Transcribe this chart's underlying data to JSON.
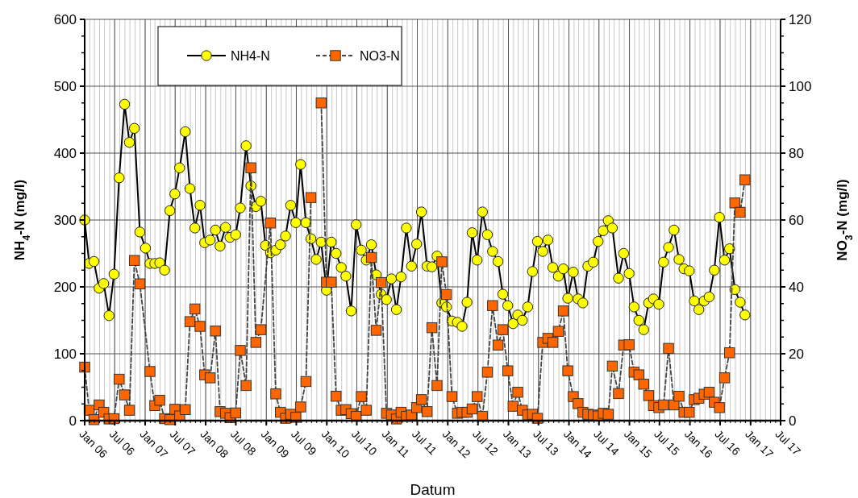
{
  "chart_data": {
    "type": "line",
    "xlabel": "Datum",
    "ylabel": "NH$_{4}$-N (mg/l)",
    "y2label": "NO$_{3}$-N (mg/l)",
    "xlim": [
      "2006-01-01",
      "2017-07-01"
    ],
    "xticks": [
      {
        "value": "2006-01-01",
        "label": "Jan 06"
      },
      {
        "value": "2006-07-01",
        "label": "Jul 06"
      },
      {
        "value": "2007-01-01",
        "label": "Jan 07"
      },
      {
        "value": "2007-07-01",
        "label": "Jul 07"
      },
      {
        "value": "2008-01-01",
        "label": "Jan 08"
      },
      {
        "value": "2008-07-01",
        "label": "Jul 08"
      },
      {
        "value": "2009-01-01",
        "label": "Jan 09"
      },
      {
        "value": "2009-07-01",
        "label": "Jul 09"
      },
      {
        "value": "2010-01-01",
        "label": "Jan 10"
      },
      {
        "value": "2010-07-01",
        "label": "Jul 10"
      },
      {
        "value": "2011-01-01",
        "label": "Jan 11"
      },
      {
        "value": "2011-07-01",
        "label": "Jul 11"
      },
      {
        "value": "2012-01-01",
        "label": "Jan 12"
      },
      {
        "value": "2012-07-01",
        "label": "Jul 12"
      },
      {
        "value": "2013-01-01",
        "label": "Jan 13"
      },
      {
        "value": "2013-07-01",
        "label": "Jul 13"
      },
      {
        "value": "2014-01-01",
        "label": "Jan 14"
      },
      {
        "value": "2014-07-01",
        "label": "Jul 14"
      },
      {
        "value": "2015-01-01",
        "label": "Jan 15"
      },
      {
        "value": "2015-07-01",
        "label": "Jul 15"
      },
      {
        "value": "2016-01-01",
        "label": "Jan 16"
      },
      {
        "value": "2016-07-01",
        "label": "Jul 16"
      },
      {
        "value": "2017-01-01",
        "label": "Jan 17"
      },
      {
        "value": "2017-07-01",
        "label": "Jul 17"
      }
    ],
    "ylim": [
      0,
      600
    ],
    "yticks": [
      0,
      100,
      200,
      300,
      400,
      500,
      600
    ],
    "y2lim": [
      0,
      120
    ],
    "y2ticks": [
      0,
      20,
      40,
      60,
      80,
      100,
      120
    ],
    "grid": true,
    "legend": "top",
    "series": [
      {
        "name": "NH4-N",
        "color": "#ffff00",
        "marker": "circle",
        "line_style": "solid",
        "x": [
          "2006-01-01",
          "2006-01-28",
          "2006-02-26",
          "2006-03-29",
          "2006-04-26",
          "2006-05-28",
          "2006-06-27",
          "2006-07-28",
          "2006-08-30",
          "2006-09-28",
          "2006-10-28",
          "2006-11-30",
          "2007-01-03",
          "2007-01-30",
          "2007-02-28",
          "2007-03-30",
          "2007-04-28",
          "2007-05-30",
          "2007-06-29",
          "2007-07-28",
          "2007-08-31",
          "2007-09-28",
          "2007-10-28",
          "2007-11-28",
          "2007-12-26",
          "2008-01-28",
          "2008-02-29",
          "2008-03-28",
          "2008-04-30",
          "2008-05-27",
          "2008-06-30",
          "2008-07-28",
          "2008-09-01",
          "2008-09-30",
          "2008-10-30",
          "2008-11-29",
          "2008-12-27",
          "2009-01-26",
          "2009-02-27",
          "2009-03-27",
          "2009-04-27",
          "2009-05-28",
          "2009-06-28",
          "2009-07-27",
          "2009-08-28",
          "2009-09-27",
          "2009-10-29",
          "2009-11-28",
          "2009-12-30",
          "2010-01-28",
          "2010-02-26",
          "2010-03-29",
          "2010-04-26",
          "2010-05-28",
          "2010-06-27",
          "2010-07-28",
          "2010-08-27",
          "2010-09-27",
          "2010-10-26",
          "2010-11-25",
          "2010-12-27",
          "2011-01-26",
          "2011-02-25",
          "2011-03-25",
          "2011-04-26",
          "2011-05-27",
          "2011-06-27",
          "2011-07-26",
          "2011-08-29",
          "2011-09-27",
          "2011-10-28",
          "2011-11-26",
          "2011-12-24",
          "2012-01-26",
          "2012-02-28",
          "2012-03-27",
          "2012-04-26",
          "2012-05-27",
          "2012-06-26",
          "2012-07-28",
          "2012-08-27",
          "2012-09-27",
          "2012-10-30",
          "2012-11-28",
          "2012-12-28",
          "2013-01-29",
          "2013-02-26",
          "2013-03-26",
          "2013-04-27",
          "2013-05-26",
          "2013-06-25",
          "2013-07-27",
          "2013-08-27",
          "2013-09-26",
          "2013-10-29",
          "2013-11-28",
          "2013-12-25",
          "2014-01-27",
          "2014-02-25",
          "2014-03-26",
          "2014-04-25",
          "2014-05-28",
          "2014-06-26",
          "2014-07-27",
          "2014-08-26",
          "2014-09-20",
          "2014-10-27",
          "2014-11-27",
          "2014-12-30",
          "2015-01-29",
          "2015-02-27",
          "2015-03-28",
          "2015-04-27",
          "2015-05-26",
          "2015-06-27",
          "2015-07-26",
          "2015-08-25",
          "2015-09-27",
          "2015-10-27",
          "2015-11-26",
          "2015-12-28",
          "2016-01-27",
          "2016-02-24",
          "2016-03-27",
          "2016-04-26",
          "2016-05-27",
          "2016-06-27",
          "2016-07-28",
          "2016-08-27",
          "2016-09-28",
          "2016-10-30",
          "2016-11-28"
        ],
        "values": [
          300,
          235,
          238,
          198,
          205,
          157,
          219,
          363,
          473,
          416,
          437,
          282,
          258,
          235,
          235,
          236,
          225,
          314,
          339,
          378,
          432,
          347,
          288,
          322,
          266,
          270,
          285,
          261,
          289,
          274,
          278,
          318,
          411,
          351,
          320,
          328,
          262,
          251,
          255,
          263,
          276,
          322,
          296,
          383,
          296,
          272,
          241,
          267,
          195,
          267,
          250,
          229,
          216,
          164,
          293,
          255,
          240,
          263,
          218,
          189,
          181,
          212,
          166,
          215,
          288,
          231,
          264,
          312,
          231,
          230,
          246,
          176,
          170,
          149,
          147,
          141,
          177,
          281,
          240,
          312,
          278,
          253,
          238,
          189,
          172,
          145,
          158,
          150,
          170,
          223,
          268,
          253,
          270,
          229,
          216,
          227,
          183,
          222,
          182,
          176,
          231,
          237,
          268,
          284,
          299,
          288,
          213,
          250,
          220,
          170,
          150,
          136,
          176,
          182,
          174,
          237,
          259,
          285,
          241,
          227,
          224,
          179,
          166,
          179,
          185,
          225,
          304,
          240,
          257,
          196,
          177,
          158
        ]
      },
      {
        "name": "NO3-N",
        "color": "#ff6600",
        "marker": "square",
        "line_style": "dashed",
        "axis": "y2",
        "x": [
          "2006-01-01",
          "2006-01-28",
          "2006-02-26",
          "2006-03-29",
          "2006-04-26",
          "2006-05-28",
          "2006-06-27",
          "2006-07-28",
          "2006-08-30",
          "2006-09-28",
          "2006-10-28",
          "2006-11-30",
          "2007-01-30",
          "2007-02-28",
          "2007-03-30",
          "2007-04-28",
          "2007-05-30",
          "2007-06-29",
          "2007-07-28",
          "2007-08-31",
          "2007-09-28",
          "2007-10-28",
          "2007-11-28",
          "2007-12-26",
          "2008-01-28",
          "2008-02-29",
          "2008-03-28",
          "2008-04-30",
          "2008-05-27",
          "2008-06-30",
          "2008-07-28",
          "2008-09-01",
          "2008-09-30",
          "2008-10-30",
          "2008-11-29",
          "2009-01-26",
          "2009-02-27",
          "2009-03-27",
          "2009-04-27",
          "2009-05-28",
          "2009-06-28",
          "2009-07-27",
          "2009-08-28",
          "2009-09-27",
          "2009-10-29",
          "2009-11-28",
          "2009-12-30",
          "2010-01-28",
          "2010-02-26",
          "2010-03-29",
          "2010-04-26",
          "2010-05-28",
          "2010-06-27",
          "2010-07-28",
          "2010-08-27",
          "2010-09-27",
          "2010-10-26",
          "2010-11-25",
          "2010-12-27",
          "2011-01-26",
          "2011-02-25",
          "2011-03-25",
          "2011-04-26",
          "2011-05-27",
          "2011-06-27",
          "2011-07-26",
          "2011-08-29",
          "2011-09-27",
          "2011-10-28",
          "2011-11-26",
          "2011-12-24",
          "2012-01-26",
          "2012-02-28",
          "2012-03-27",
          "2012-04-26",
          "2012-05-27",
          "2012-06-26",
          "2012-07-28",
          "2012-08-27",
          "2012-09-27",
          "2012-10-30",
          "2012-11-28",
          "2012-12-28",
          "2013-01-29",
          "2013-02-26",
          "2013-03-26",
          "2013-04-27",
          "2013-05-26",
          "2013-06-25",
          "2013-07-27",
          "2013-08-27",
          "2013-09-26",
          "2013-10-29",
          "2013-11-28",
          "2013-12-25",
          "2014-01-27",
          "2014-02-25",
          "2014-03-26",
          "2014-04-25",
          "2014-05-28",
          "2014-06-26",
          "2014-07-27",
          "2014-08-26",
          "2014-09-20",
          "2014-10-27",
          "2014-11-27",
          "2014-12-30",
          "2015-01-29",
          "2015-02-27",
          "2015-03-28",
          "2015-04-27",
          "2015-05-26",
          "2015-06-27",
          "2015-07-26",
          "2015-08-25",
          "2015-09-27",
          "2015-10-27",
          "2015-11-26",
          "2015-12-28",
          "2016-01-27",
          "2016-02-24",
          "2016-03-27",
          "2016-04-26",
          "2016-05-27",
          "2016-06-27",
          "2016-07-28",
          "2016-08-27",
          "2016-09-28",
          "2016-10-30",
          "2016-11-28"
        ],
        "values": [
          16,
          3.1,
          0.3,
          4.7,
          2.5,
          0.5,
          0.6,
          12.4,
          7.7,
          3.1,
          47.9,
          40.9,
          14.7,
          4.5,
          6.1,
          0.6,
          0.3,
          3.4,
          1.4,
          3.3,
          29.6,
          33.4,
          28.2,
          13.7,
          12.8,
          26.8,
          2.7,
          2.2,
          0.9,
          2.3,
          21,
          10.5,
          75.6,
          23.4,
          27.2,
          59.1,
          8,
          2.5,
          0.7,
          1.9,
          1,
          4.1,
          11.7,
          66.7,
          null,
          95,
          41.4,
          41.4,
          7.3,
          3.1,
          3.3,
          2.1,
          1.3,
          7.2,
          3.1,
          48.8,
          27,
          41.3,
          2.2,
          1.7,
          0.5,
          2.5,
          1.3,
          1.7,
          3.9,
          6.3,
          2.7,
          27.8,
          10.5,
          47.5,
          37.7,
          7.2,
          2.2,
          2.5,
          2.5,
          3.5,
          7.2,
          1.3,
          14.5,
          34.4,
          22.6,
          27.2,
          14.9,
          4.3,
          8.5,
          3.1,
          1.7,
          1.9,
          0.7,
          23.4,
          24.6,
          23.4,
          26.7,
          32.8,
          14.9,
          7.2,
          5.1,
          2.5,
          1.9,
          1.7,
          1.4,
          2.2,
          1.9,
          16.3,
          8.1,
          22.6,
          22.7,
          14.5,
          13.7,
          10.9,
          7.5,
          4.5,
          3.9,
          4.7,
          21.6,
          4.7,
          7.3,
          2.5,
          2.5,
          6.3,
          6.7,
          7.9,
          8.5,
          5.5,
          3.9,
          12.8,
          20.3,
          65.1,
          62.3,
          72
        ]
      }
    ]
  }
}
